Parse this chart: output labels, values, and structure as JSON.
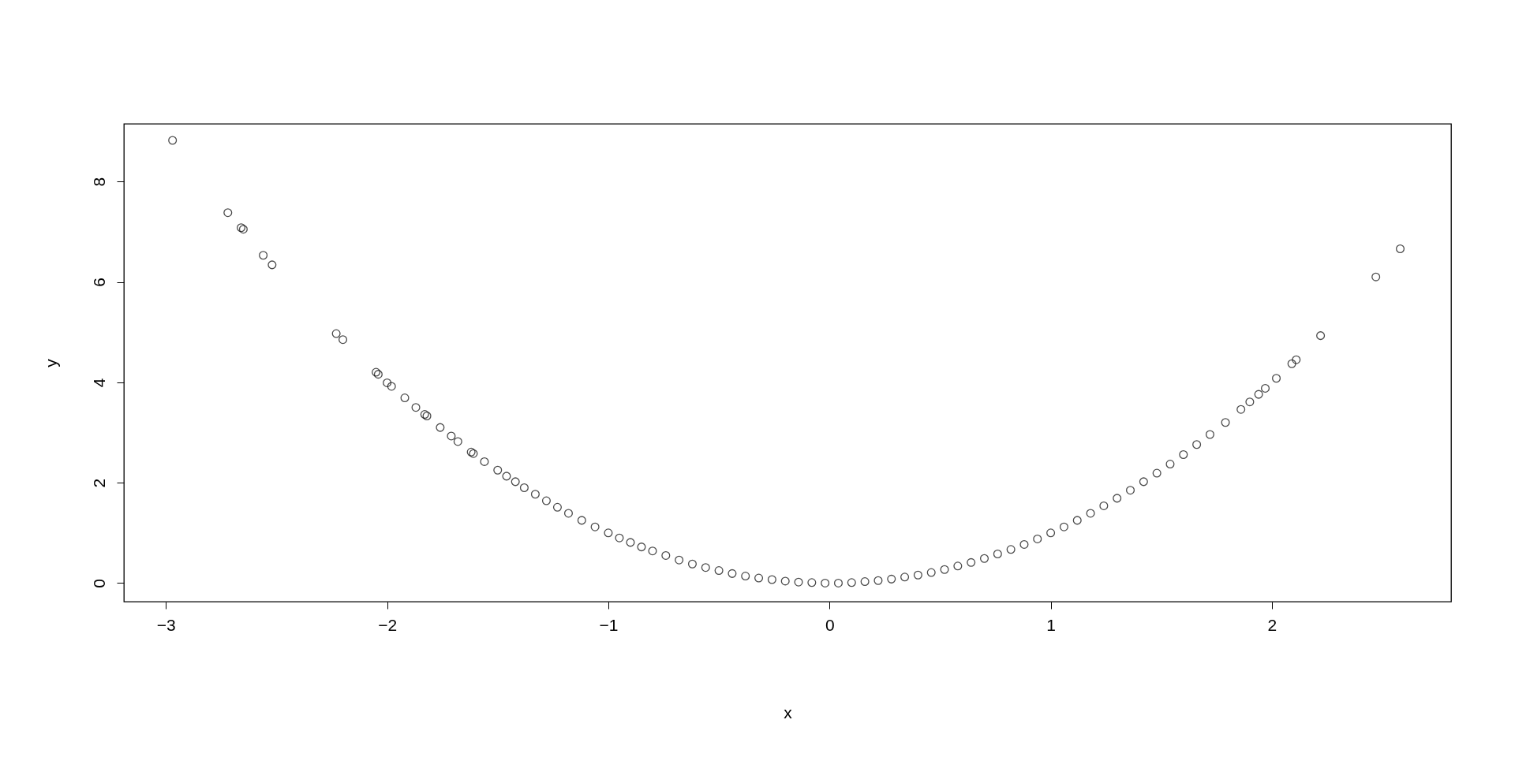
{
  "chart_data": {
    "type": "scatter",
    "xlabel": "x",
    "ylabel": "y",
    "xlim": [
      -3.19,
      2.81
    ],
    "ylim": [
      -0.37,
      9.15
    ],
    "xticks": [
      -3,
      -2,
      -1,
      0,
      1,
      2
    ],
    "yticks": [
      0,
      2,
      4,
      6,
      8
    ],
    "grid": false,
    "marker": "circle",
    "series": [
      {
        "color": "#000000",
        "x": [
          -2.97,
          -2.72,
          -2.66,
          -2.65,
          -2.56,
          -2.52,
          -2.23,
          -2.2,
          -2.05,
          -2.04,
          -2.0,
          -1.98,
          -1.92,
          -1.87,
          -1.83,
          -1.82,
          -1.76,
          -1.71,
          -1.68,
          -1.62,
          -1.61,
          -1.56,
          -1.5,
          -1.46,
          -1.42,
          -1.38,
          -1.33,
          -1.28,
          -1.23,
          -1.18,
          -1.12,
          -1.06,
          -1.0,
          -0.95,
          -0.9,
          -0.85,
          -0.8,
          -0.74,
          -0.68,
          -0.62,
          -0.56,
          -0.5,
          -0.44,
          -0.38,
          -0.32,
          -0.26,
          -0.2,
          -0.14,
          -0.08,
          -0.02,
          0.04,
          0.1,
          0.16,
          0.22,
          0.28,
          0.34,
          0.4,
          0.46,
          0.52,
          0.58,
          0.64,
          0.7,
          0.76,
          0.82,
          0.88,
          0.94,
          1.0,
          1.06,
          1.12,
          1.18,
          1.24,
          1.3,
          1.36,
          1.42,
          1.48,
          1.54,
          1.6,
          1.66,
          1.72,
          1.79,
          1.86,
          1.9,
          1.94,
          1.97,
          2.02,
          2.09,
          2.11,
          2.22,
          2.47,
          2.58
        ],
        "values": [
          8.82,
          7.38,
          7.08,
          7.05,
          6.53,
          6.34,
          4.97,
          4.85,
          4.2,
          4.16,
          3.99,
          3.92,
          3.69,
          3.5,
          3.36,
          3.33,
          3.1,
          2.93,
          2.82,
          2.61,
          2.58,
          2.42,
          2.25,
          2.13,
          2.02,
          1.9,
          1.77,
          1.64,
          1.51,
          1.39,
          1.25,
          1.12,
          1.0,
          0.9,
          0.81,
          0.72,
          0.64,
          0.55,
          0.46,
          0.38,
          0.31,
          0.25,
          0.19,
          0.14,
          0.1,
          0.07,
          0.04,
          0.02,
          0.01,
          0,
          0,
          0.01,
          0.03,
          0.05,
          0.08,
          0.12,
          0.16,
          0.21,
          0.27,
          0.34,
          0.41,
          0.49,
          0.58,
          0.67,
          0.77,
          0.88,
          1.0,
          1.12,
          1.25,
          1.39,
          1.54,
          1.69,
          1.85,
          2.02,
          2.19,
          2.37,
          2.56,
          2.76,
          2.96,
          3.2,
          3.46,
          3.61,
          3.76,
          3.88,
          4.08,
          4.37,
          4.45,
          4.93,
          6.1,
          6.66
        ]
      }
    ]
  }
}
